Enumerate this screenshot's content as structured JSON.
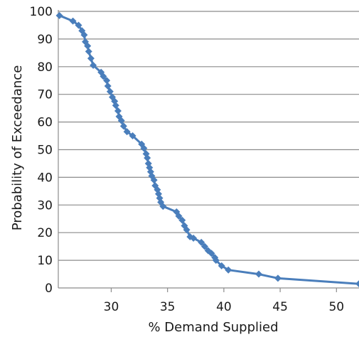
{
  "chart_data": {
    "type": "line",
    "title": "",
    "xlabel": "% Demand Supplied",
    "ylabel": "Probability of Exceedance",
    "xlim": [
      25.3,
      52
    ],
    "ylim": [
      0,
      100
    ],
    "xticks": [
      30,
      35,
      40,
      45,
      50
    ],
    "yticks": [
      0,
      10,
      20,
      30,
      40,
      50,
      60,
      70,
      80,
      90,
      100
    ],
    "grid": "horizontal",
    "legend": "none",
    "marker": "diamond",
    "color": "#4a7ebb",
    "series": [
      {
        "x": [
          25.4,
          26.6,
          27.1,
          27.4,
          27.6,
          27.7,
          27.9,
          28.0,
          28.2,
          28.4,
          29.1,
          29.3,
          29.6,
          29.7,
          29.9,
          30.1,
          30.3,
          30.4,
          30.6,
          30.7,
          30.9,
          31.1,
          31.4,
          31.9,
          32.7,
          32.9,
          33.1,
          33.2,
          33.3,
          33.4,
          33.5,
          33.6,
          33.8,
          33.9,
          34.1,
          34.2,
          34.3,
          34.4,
          34.6,
          35.8,
          36.0,
          36.3,
          36.5,
          36.7,
          37.0,
          37.3,
          38.0,
          38.3,
          38.6,
          38.9,
          39.2,
          39.3,
          39.8,
          40.4,
          43.1,
          44.8,
          52.0
        ],
        "y": [
          98.5,
          96.5,
          95,
          93,
          91.5,
          89,
          87.5,
          85.5,
          83,
          80.5,
          78,
          76.5,
          75,
          73,
          71,
          69,
          67.5,
          66,
          64,
          62,
          60.5,
          58.5,
          56.5,
          55,
          52,
          50.5,
          48.5,
          47,
          45,
          43.5,
          42,
          40.5,
          39,
          37,
          35.5,
          34,
          32.5,
          31,
          29.5,
          27.5,
          26,
          24.5,
          22.5,
          21,
          18.5,
          18,
          16.5,
          15,
          13.5,
          12.5,
          11,
          10,
          8,
          6.5,
          5,
          3.5,
          1.5
        ]
      }
    ]
  }
}
